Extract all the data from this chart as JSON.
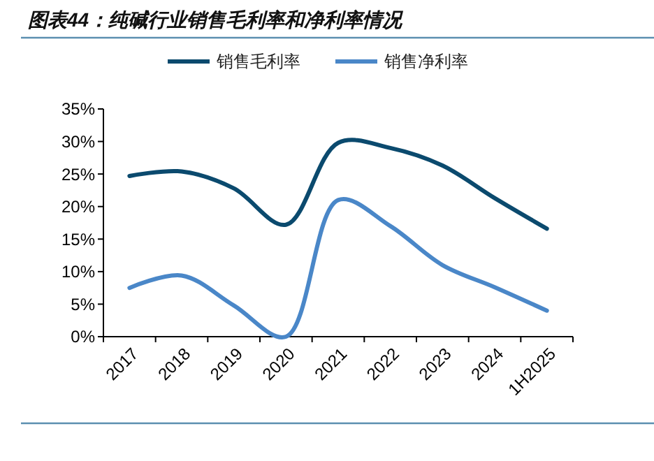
{
  "chart_data": {
    "type": "line",
    "title": "图表44：纯碱行业销售毛利率和净利率情况",
    "categories": [
      "2017",
      "2018",
      "2019",
      "2020",
      "2021",
      "2022",
      "2023",
      "2024",
      "1H2025"
    ],
    "series": [
      {
        "name": "销售毛利率",
        "color": "#0b4a6e",
        "values": [
          24.7,
          25.4,
          22.8,
          17.2,
          29.8,
          29.0,
          26.3,
          21.3,
          16.6
        ]
      },
      {
        "name": "销售净利率",
        "color": "#4a87c8",
        "values": [
          7.5,
          9.4,
          4.8,
          0,
          21.0,
          17.0,
          11.0,
          7.6,
          4.0
        ]
      }
    ],
    "ylim": [
      0,
      35
    ],
    "yticks": [
      {
        "value": 0,
        "label": "0%"
      },
      {
        "value": 5,
        "label": "5%"
      },
      {
        "value": 10,
        "label": "10%"
      },
      {
        "value": 15,
        "label": "15%"
      },
      {
        "value": 20,
        "label": "20%"
      },
      {
        "value": 25,
        "label": "25%"
      },
      {
        "value": 30,
        "label": "30%"
      },
      {
        "value": 35,
        "label": "35%"
      }
    ],
    "legend": "top",
    "grid": false,
    "marker": "none",
    "line_style": "solid"
  }
}
